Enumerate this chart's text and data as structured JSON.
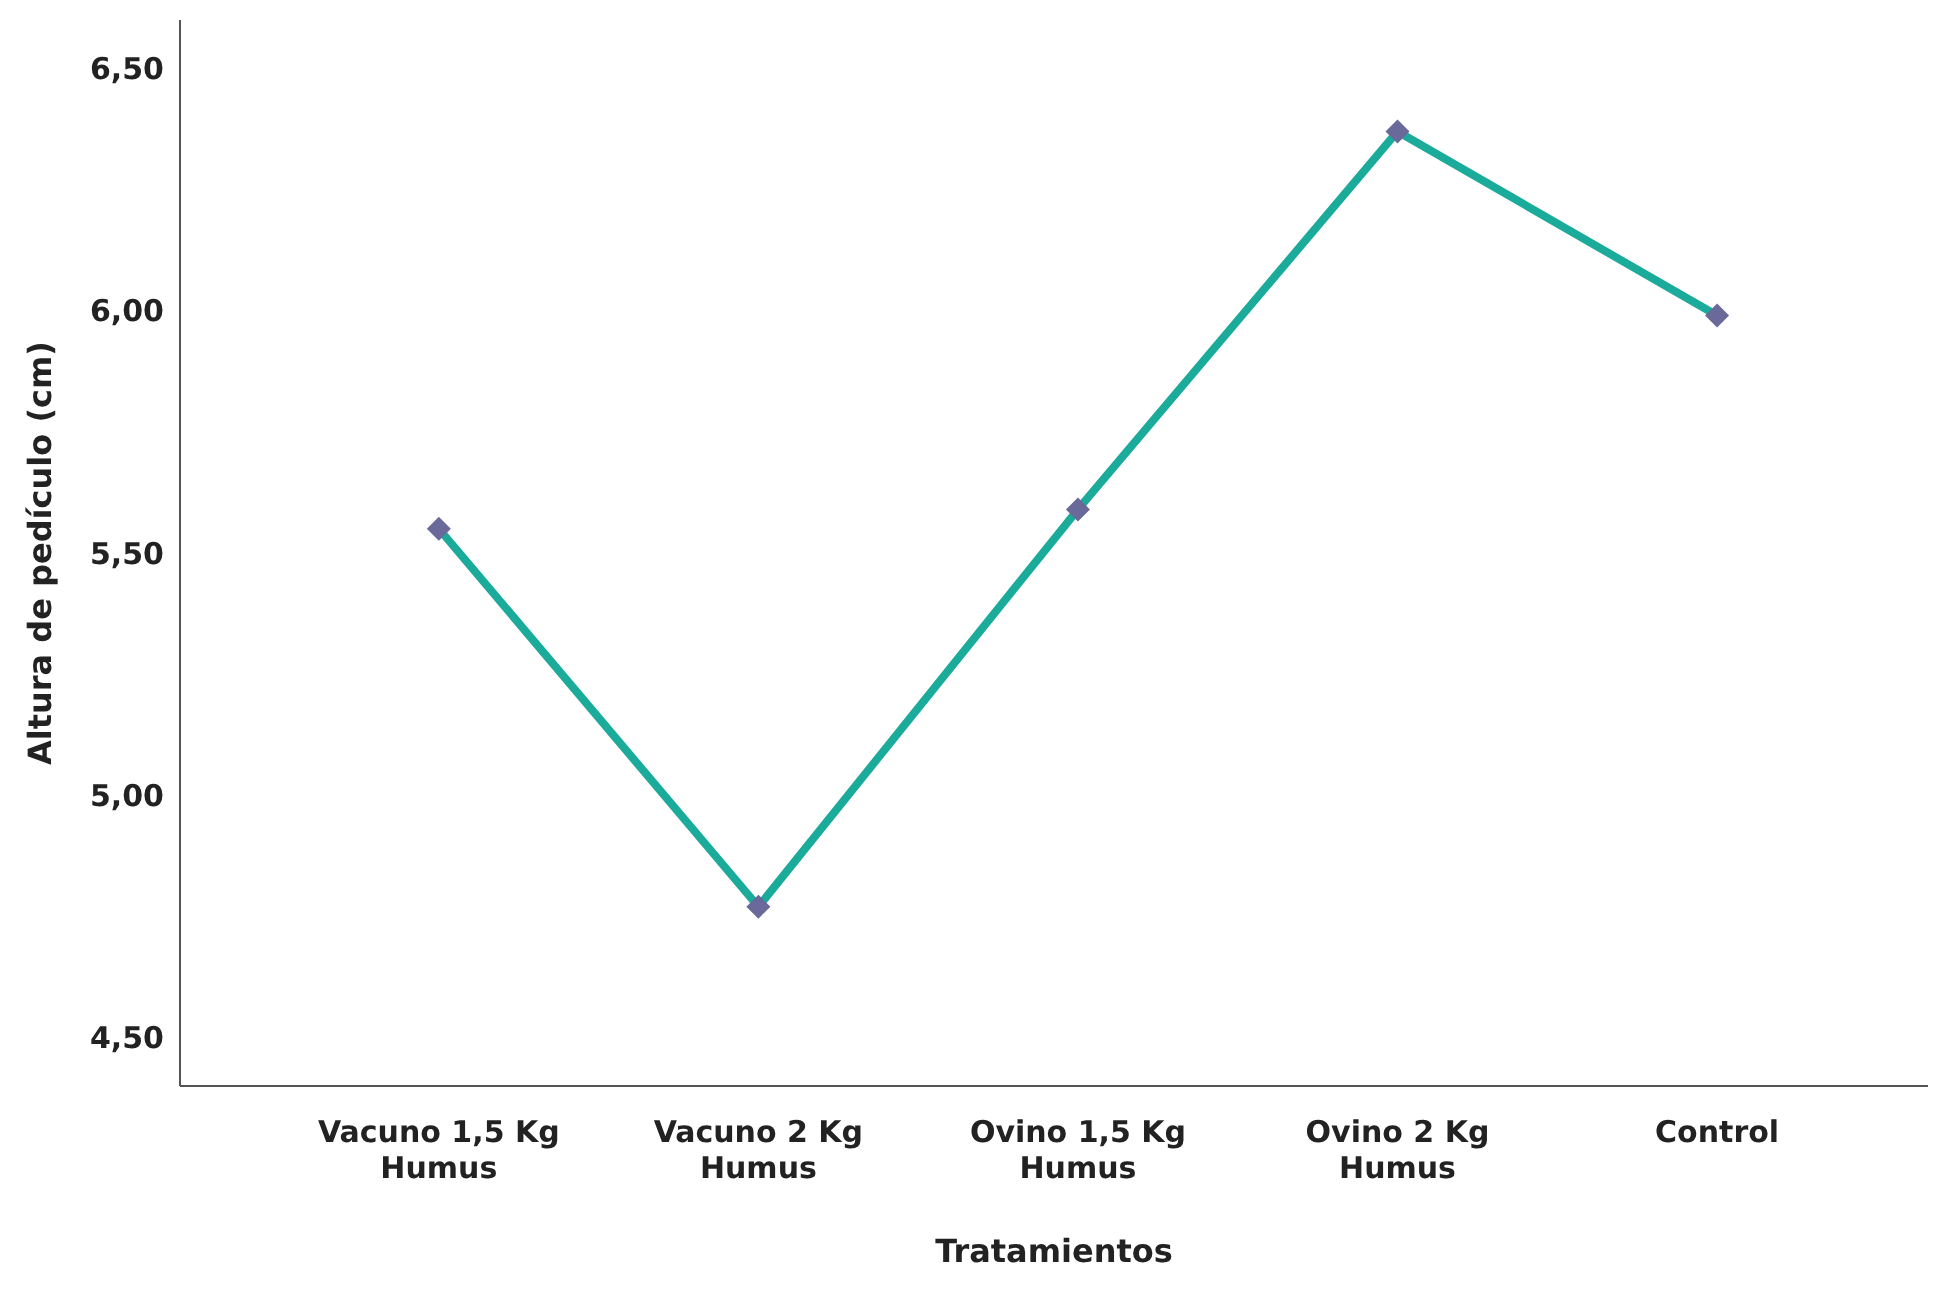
{
  "chart_data": {
    "type": "line",
    "xlabel": "Tratamientos",
    "ylabel": "Altura de pedículo (cm)",
    "categories": [
      "Vacuno 1,5 Kg Humus",
      "Vacuno 2 Kg Humus",
      "Ovino 1,5 Kg Humus",
      "Ovino 2 Kg Humus",
      "Control"
    ],
    "series": [
      {
        "color": "#1aab9b",
        "colors": [
          "#69699a",
          "#69699a",
          "#69699a",
          "#69699a",
          "#69699a"
        ],
        "values": [
          5.55,
          4.77,
          5.59,
          6.37,
          5.99
        ]
      }
    ],
    "ylim": [
      4.4,
      6.6
    ],
    "yticks": [
      {
        "value": 4.5,
        "label": "4,50"
      },
      {
        "value": 5,
        "label": "5,00"
      },
      {
        "value": 5.5,
        "label": "5,50"
      },
      {
        "value": 6,
        "label": "6,00"
      },
      {
        "value": 6.5,
        "label": "6,50"
      }
    ],
    "marker": "diamond",
    "line_style": "solid",
    "grid": false,
    "legend": false
  }
}
